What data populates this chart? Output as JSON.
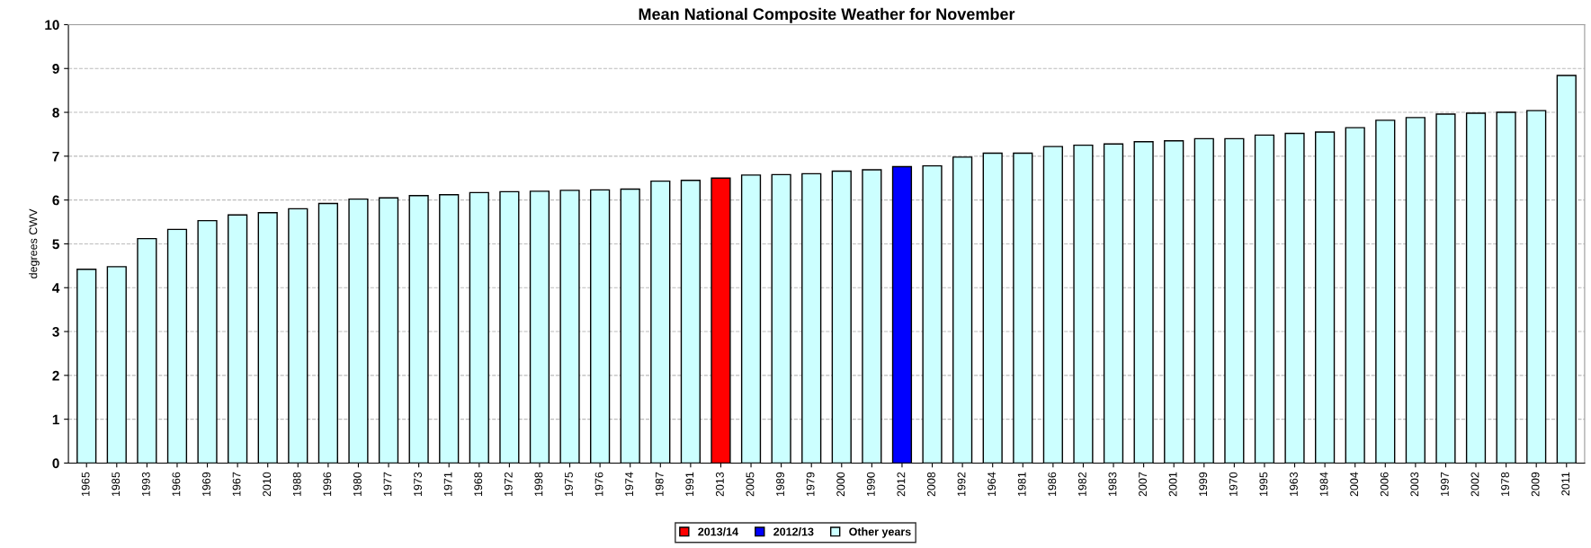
{
  "chart_data": {
    "type": "bar",
    "title": "Mean National Composite Weather for November",
    "ylabel": "degrees CWV",
    "categories": [
      "1965",
      "1985",
      "1993",
      "1966",
      "1969",
      "1967",
      "2010",
      "1988",
      "1996",
      "1980",
      "1977",
      "1973",
      "1971",
      "1968",
      "1972",
      "1998",
      "1975",
      "1976",
      "1974",
      "1987",
      "1991",
      "2013",
      "2005",
      "1989",
      "1979",
      "2000",
      "1990",
      "2012",
      "2008",
      "1992",
      "1964",
      "1981",
      "1986",
      "1982",
      "1983",
      "2007",
      "2001",
      "1999",
      "1970",
      "1995",
      "1963",
      "1984",
      "2004",
      "2006",
      "2003",
      "1997",
      "2002",
      "1978",
      "2009",
      "2011"
    ],
    "series": [
      {
        "name": "2013/14",
        "color": "#ff0000",
        "values": [
          null,
          null,
          null,
          null,
          null,
          null,
          null,
          null,
          null,
          null,
          null,
          null,
          null,
          null,
          null,
          null,
          null,
          null,
          null,
          null,
          null,
          6.5,
          null,
          null,
          null,
          null,
          null,
          null,
          null,
          null,
          null,
          null,
          null,
          null,
          null,
          null,
          null,
          null,
          null,
          null,
          null,
          null,
          null,
          null,
          null,
          null,
          null,
          null,
          null,
          null
        ]
      },
      {
        "name": "2012/13",
        "color": "#0000ff",
        "values": [
          null,
          null,
          null,
          null,
          null,
          null,
          null,
          null,
          null,
          null,
          null,
          null,
          null,
          null,
          null,
          null,
          null,
          null,
          null,
          null,
          null,
          null,
          null,
          null,
          null,
          null,
          null,
          6.76,
          null,
          null,
          null,
          null,
          null,
          null,
          null,
          null,
          null,
          null,
          null,
          null,
          null,
          null,
          null,
          null,
          null,
          null,
          null,
          null,
          null,
          null
        ]
      },
      {
        "name": "Other years",
        "color": "#ccffff",
        "values": [
          4.42,
          4.48,
          5.12,
          5.33,
          5.53,
          5.66,
          5.71,
          5.8,
          5.92,
          6.02,
          6.05,
          6.1,
          6.12,
          6.17,
          6.19,
          6.2,
          6.22,
          6.23,
          6.25,
          6.43,
          6.45,
          null,
          6.57,
          6.58,
          6.6,
          6.66,
          6.69,
          null,
          6.78,
          6.98,
          7.07,
          7.07,
          7.22,
          7.25,
          7.28,
          7.33,
          7.35,
          7.4,
          7.4,
          7.48,
          7.52,
          7.55,
          7.65,
          7.82,
          7.88,
          7.96,
          7.98,
          8.0,
          8.04,
          8.84
        ]
      }
    ],
    "ylim": [
      0,
      10
    ],
    "yticks": [
      0,
      1,
      2,
      3,
      4,
      5,
      6,
      7,
      8,
      9,
      10
    ],
    "grid": "y",
    "legend": "bottom"
  }
}
